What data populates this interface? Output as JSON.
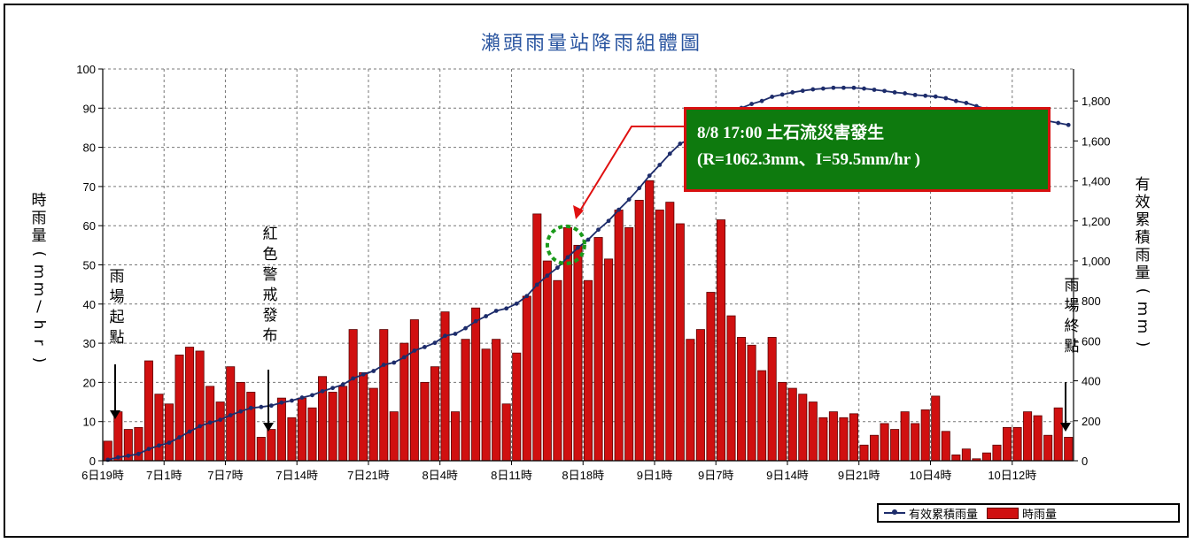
{
  "chart_data": {
    "type": "bar",
    "title": "瀨頭雨量站降雨組體圖",
    "ylabel_left": "時雨量(mm/hr)",
    "ylabel_right": "有效累積雨量(mm)",
    "y_left_range": [
      0,
      100
    ],
    "y_left_ticks": [
      "0",
      "10",
      "20",
      "30",
      "40",
      "50",
      "60",
      "70",
      "80",
      "90",
      "100"
    ],
    "y_right_range": [
      0,
      1960
    ],
    "y_right_ticks": [
      "0",
      "200",
      "400",
      "600",
      "800",
      "1,000",
      "1,200",
      "1,400",
      "1,600",
      "1,800"
    ],
    "x_tick_labels": [
      "6日19時",
      "7日1時",
      "7日7時",
      "7日14時",
      "7日21時",
      "8日4時",
      "8日11時",
      "8日18時",
      "9日1時",
      "9日7時",
      "9日14時",
      "9日21時",
      "10日4時",
      "10日12時"
    ],
    "x_start": "6日19時",
    "grid": true,
    "legend_position": "bottom-right",
    "series": [
      {
        "name": "時雨量",
        "kind": "bar",
        "color": "#d01010",
        "values": [
          5.0,
          12.5,
          8.0,
          8.5,
          25.5,
          17.0,
          14.5,
          27.0,
          29.0,
          28.0,
          19.0,
          15.0,
          24.0,
          20.0,
          17.5,
          6.0,
          8.0,
          16.0,
          11.0,
          16.0,
          13.5,
          21.5,
          17.5,
          19.0,
          33.5,
          22.5,
          18.5,
          33.5,
          12.5,
          30.0,
          36.0,
          20.0,
          24.0,
          38.0,
          12.5,
          31.0,
          39.0,
          28.5,
          31.0,
          14.5,
          27.5,
          42.0,
          63.0,
          51.0,
          46.0,
          59.5,
          55.0,
          46.0,
          57.0,
          51.5,
          64.0,
          59.5,
          66.5,
          71.5,
          64.0,
          66.0,
          60.5,
          31.0,
          33.5,
          43.0,
          61.5,
          37.0,
          31.5,
          29.5,
          23.0,
          31.5,
          20.0,
          18.5,
          17.0,
          15.0,
          11.0,
          12.5,
          11.0,
          12.0,
          4.0,
          6.5,
          9.5,
          8.0,
          12.5,
          9.5,
          13.0,
          16.5,
          7.5,
          1.5,
          3.0,
          0.5,
          2.0,
          4.0,
          8.5,
          8.5,
          12.5,
          11.5,
          6.5,
          13.5,
          6.0
        ]
      },
      {
        "name": "有效累積雨量",
        "kind": "line",
        "color": "#1d2c6b",
        "values": [
          5,
          17,
          25,
          34,
          59,
          76,
          90,
          117,
          146,
          173,
          191,
          205,
          228,
          247,
          264,
          269,
          276,
          291,
          301,
          316,
          328,
          348,
          364,
          381,
          412,
          432,
          449,
          480,
          491,
          518,
          551,
          569,
          590,
          625,
          635,
          663,
          698,
          723,
          750,
          762,
          786,
          824,
          881,
          926,
          966,
          1018,
          1066,
          1106,
          1156,
          1200,
          1256,
          1307,
          1364,
          1426,
          1480,
          1536,
          1586,
          1610,
          1634,
          1668,
          1716,
          1743,
          1765,
          1785,
          1800,
          1821,
          1832,
          1843,
          1851,
          1858,
          1862,
          1866,
          1866,
          1866,
          1862,
          1856,
          1850,
          1843,
          1838,
          1830,
          1826,
          1822,
          1814,
          1800,
          1790,
          1774,
          1760,
          1746,
          1738,
          1728,
          1723,
          1714,
          1700,
          1690,
          1680
        ]
      }
    ],
    "annotations": {
      "start": "雨場起點",
      "red_alert": "紅色警戒發布",
      "end": "雨場終點",
      "callout_line1": "8/8 17:00  土石流災害發生",
      "callout_line2": "(R=1062.3mm、I=59.5mm/hr )",
      "event_index": 45
    }
  },
  "legend": {
    "line_label": "有效累積雨量",
    "bar_label": "時雨量"
  }
}
